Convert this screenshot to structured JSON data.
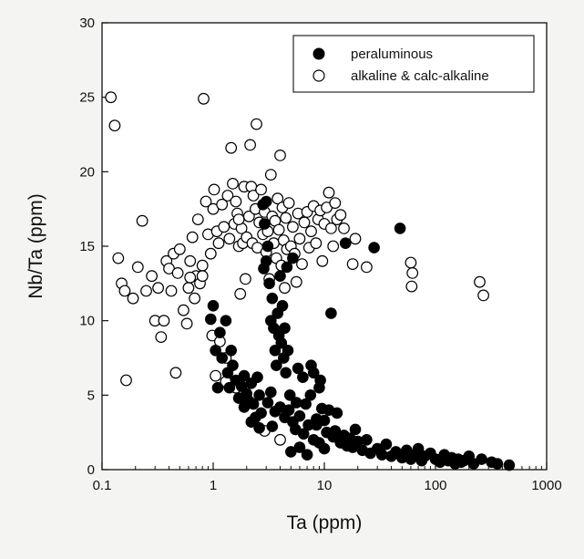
{
  "chart_data": {
    "type": "scatter",
    "title": "",
    "xlabel": "Ta (ppm)",
    "ylabel": "Nb/Ta (ppm)",
    "x_scale": "log",
    "xlim": [
      0.1,
      1000
    ],
    "ylim": [
      0,
      30
    ],
    "x_ticks": [
      0.1,
      1,
      10,
      100,
      1000
    ],
    "x_tick_labels": [
      "0.1",
      "1",
      "10",
      "100",
      "1000"
    ],
    "y_ticks": [
      0,
      5,
      10,
      15,
      20,
      25,
      30
    ],
    "y_tick_labels": [
      "0",
      "5",
      "10",
      "15",
      "20",
      "25",
      "30"
    ],
    "grid": false,
    "legend_position": "top-right",
    "series": [
      {
        "name": "peraluminous",
        "marker": "filled-circle",
        "color": "#000000",
        "points": [
          [
            0.95,
            10.1
          ],
          [
            1.0,
            11.0
          ],
          [
            1.05,
            8.0
          ],
          [
            1.1,
            5.5
          ],
          [
            1.2,
            7.5
          ],
          [
            1.3,
            10.0
          ],
          [
            1.35,
            6.5
          ],
          [
            1.4,
            5.5
          ],
          [
            1.5,
            7.0
          ],
          [
            1.6,
            6.0
          ],
          [
            1.7,
            4.8
          ],
          [
            1.8,
            5.6
          ],
          [
            1.9,
            6.3
          ],
          [
            2.0,
            5.1
          ],
          [
            2.1,
            4.6
          ],
          [
            2.2,
            5.8
          ],
          [
            2.3,
            4.4
          ],
          [
            2.5,
            6.2
          ],
          [
            2.6,
            5.0
          ],
          [
            2.7,
            3.8
          ],
          [
            2.8,
            17.8
          ],
          [
            2.9,
            16.5
          ],
          [
            2.85,
            13.5
          ],
          [
            3.0,
            18.0
          ],
          [
            3.1,
            15.0
          ],
          [
            3.2,
            12.5
          ],
          [
            3.0,
            14.0
          ],
          [
            3.3,
            10.0
          ],
          [
            3.4,
            11.5
          ],
          [
            3.5,
            9.5
          ],
          [
            3.6,
            8.0
          ],
          [
            3.7,
            7.0
          ],
          [
            3.8,
            10.5
          ],
          [
            3.9,
            9.0
          ],
          [
            4.0,
            13.0
          ],
          [
            4.1,
            8.5
          ],
          [
            4.2,
            11.0
          ],
          [
            4.3,
            7.5
          ],
          [
            4.4,
            9.5
          ],
          [
            4.5,
            6.5
          ],
          [
            4.7,
            8.0
          ],
          [
            4.9,
            5.0
          ],
          [
            3.1,
            4.5
          ],
          [
            3.3,
            5.2
          ],
          [
            3.6,
            3.9
          ],
          [
            4.0,
            4.2
          ],
          [
            4.4,
            3.5
          ],
          [
            4.8,
            4.0
          ],
          [
            5.2,
            3.2
          ],
          [
            5.6,
            4.5
          ],
          [
            6.0,
            3.6
          ],
          [
            6.4,
            6.2
          ],
          [
            6.8,
            4.4
          ],
          [
            7.2,
            3.0
          ],
          [
            7.6,
            7.0
          ],
          [
            8.0,
            6.5
          ],
          [
            8.5,
            3.4
          ],
          [
            9.0,
            5.5
          ],
          [
            9.5,
            4.1
          ],
          [
            10.0,
            3.3
          ],
          [
            10.5,
            2.5
          ],
          [
            11.0,
            4.0
          ],
          [
            11.5,
            10.5
          ],
          [
            12.0,
            2.2
          ],
          [
            12.5,
            2.6
          ],
          [
            13.0,
            3.8
          ],
          [
            14.0,
            1.8
          ],
          [
            15.0,
            2.3
          ],
          [
            15.5,
            15.2
          ],
          [
            16.0,
            1.6
          ],
          [
            17.0,
            2.1
          ],
          [
            18.0,
            1.5
          ],
          [
            19.0,
            2.7
          ],
          [
            20.0,
            1.9
          ],
          [
            22.0,
            1.3
          ],
          [
            24.0,
            2.0
          ],
          [
            26.0,
            1.1
          ],
          [
            28.0,
            14.9
          ],
          [
            30.0,
            1.4
          ],
          [
            33.0,
            1.0
          ],
          [
            36.0,
            1.7
          ],
          [
            40.0,
            0.9
          ],
          [
            44.0,
            1.2
          ],
          [
            48.0,
            16.2
          ],
          [
            50.0,
            0.8
          ],
          [
            55.0,
            1.3
          ],
          [
            60.0,
            0.7
          ],
          [
            65.0,
            1.0
          ],
          [
            70.0,
            1.4
          ],
          [
            75.0,
            0.6
          ],
          [
            80.0,
            0.9
          ],
          [
            90.0,
            1.1
          ],
          [
            100.0,
            0.7
          ],
          [
            110.0,
            0.5
          ],
          [
            120.0,
            1.0
          ],
          [
            130.0,
            0.6
          ],
          [
            140.0,
            0.8
          ],
          [
            150.0,
            0.4
          ],
          [
            160.0,
            0.7
          ],
          [
            170.0,
            0.5
          ],
          [
            180.0,
            0.6
          ],
          [
            200.0,
            0.9
          ],
          [
            220.0,
            0.4
          ],
          [
            260.0,
            0.7
          ],
          [
            320.0,
            0.5
          ],
          [
            360.0,
            0.4
          ],
          [
            460.0,
            0.3
          ],
          [
            5.0,
            1.2
          ],
          [
            6.0,
            1.5
          ],
          [
            7.0,
            1.0
          ],
          [
            8.0,
            2.0
          ],
          [
            9.0,
            1.8
          ],
          [
            10.0,
            1.4
          ],
          [
            5.5,
            2.7
          ],
          [
            6.5,
            2.4
          ],
          [
            7.5,
            5.0
          ],
          [
            8.5,
            3.0
          ],
          [
            2.4,
            3.5
          ],
          [
            2.6,
            2.8
          ],
          [
            3.4,
            2.9
          ],
          [
            2.2,
            3.2
          ],
          [
            1.9,
            4.2
          ],
          [
            5.8,
            6.8
          ],
          [
            9.2,
            6.0
          ],
          [
            4.6,
            13.6
          ],
          [
            5.2,
            14.2
          ],
          [
            1.15,
            9.2
          ],
          [
            1.45,
            8.0
          ]
        ]
      },
      {
        "name": "alkaline & calc-alkaline",
        "marker": "open-circle",
        "color": "#ffffff",
        "points": [
          [
            0.12,
            25.0
          ],
          [
            0.13,
            23.1
          ],
          [
            0.14,
            14.2
          ],
          [
            0.15,
            12.5
          ],
          [
            0.16,
            12.0
          ],
          [
            0.165,
            6.0
          ],
          [
            0.19,
            11.5
          ],
          [
            0.21,
            13.6
          ],
          [
            0.23,
            16.7
          ],
          [
            0.25,
            12.0
          ],
          [
            0.28,
            13.0
          ],
          [
            0.3,
            10.0
          ],
          [
            0.32,
            12.2
          ],
          [
            0.34,
            8.9
          ],
          [
            0.36,
            10.0
          ],
          [
            0.38,
            14.0
          ],
          [
            0.4,
            13.5
          ],
          [
            0.42,
            12.0
          ],
          [
            0.44,
            14.5
          ],
          [
            0.46,
            6.5
          ],
          [
            0.48,
            13.2
          ],
          [
            0.5,
            14.8
          ],
          [
            0.54,
            10.7
          ],
          [
            0.58,
            9.8
          ],
          [
            0.6,
            12.2
          ],
          [
            0.62,
            14.0
          ],
          [
            0.65,
            15.6
          ],
          [
            0.68,
            11.5
          ],
          [
            0.7,
            13.0
          ],
          [
            0.73,
            16.8
          ],
          [
            0.76,
            12.5
          ],
          [
            0.8,
            13.7
          ],
          [
            0.82,
            24.9
          ],
          [
            0.86,
            18.0
          ],
          [
            0.9,
            15.8
          ],
          [
            0.95,
            14.5
          ],
          [
            0.98,
            9.0
          ],
          [
            1.0,
            17.5
          ],
          [
            1.02,
            18.8
          ],
          [
            1.05,
            6.3
          ],
          [
            1.08,
            16.0
          ],
          [
            1.12,
            15.2
          ],
          [
            1.15,
            8.6
          ],
          [
            1.2,
            17.8
          ],
          [
            1.25,
            16.3
          ],
          [
            1.3,
            7.5
          ],
          [
            1.35,
            18.4
          ],
          [
            1.4,
            15.5
          ],
          [
            1.45,
            21.6
          ],
          [
            1.5,
            19.2
          ],
          [
            1.55,
            16.5
          ],
          [
            1.6,
            18.0
          ],
          [
            1.65,
            17.2
          ],
          [
            1.7,
            15.0
          ],
          [
            1.75,
            11.8
          ],
          [
            1.8,
            16.2
          ],
          [
            1.85,
            15.2
          ],
          [
            1.9,
            19.0
          ],
          [
            1.95,
            12.8
          ],
          [
            2.0,
            15.6
          ],
          [
            2.1,
            17.0
          ],
          [
            2.15,
            21.8
          ],
          [
            2.2,
            19.0
          ],
          [
            2.25,
            15.2
          ],
          [
            2.3,
            18.4
          ],
          [
            2.4,
            17.5
          ],
          [
            2.45,
            23.2
          ],
          [
            2.5,
            14.9
          ],
          [
            2.6,
            16.6
          ],
          [
            2.7,
            18.8
          ],
          [
            2.8,
            15.8
          ],
          [
            2.9,
            17.3
          ],
          [
            3.0,
            14.6
          ],
          [
            3.1,
            16.0
          ],
          [
            3.2,
            12.8
          ],
          [
            3.3,
            19.8
          ],
          [
            3.4,
            17.0
          ],
          [
            3.5,
            15.2
          ],
          [
            3.6,
            16.7
          ],
          [
            3.7,
            14.2
          ],
          [
            3.8,
            18.2
          ],
          [
            3.9,
            16.1
          ],
          [
            4.0,
            21.1
          ],
          [
            4.1,
            13.7
          ],
          [
            4.2,
            17.6
          ],
          [
            4.3,
            15.4
          ],
          [
            4.4,
            12.2
          ],
          [
            4.5,
            16.9
          ],
          [
            4.6,
            14.8
          ],
          [
            4.8,
            17.9
          ],
          [
            5.0,
            15.0
          ],
          [
            5.2,
            16.3
          ],
          [
            5.4,
            14.5
          ],
          [
            5.6,
            12.6
          ],
          [
            5.8,
            17.2
          ],
          [
            6.0,
            15.5
          ],
          [
            6.3,
            13.8
          ],
          [
            6.6,
            16.6
          ],
          [
            7.0,
            17.3
          ],
          [
            7.3,
            14.9
          ],
          [
            7.6,
            16.0
          ],
          [
            8.0,
            17.7
          ],
          [
            8.4,
            15.2
          ],
          [
            8.8,
            16.8
          ],
          [
            9.2,
            17.4
          ],
          [
            9.6,
            14.0
          ],
          [
            10.0,
            16.5
          ],
          [
            10.5,
            17.6
          ],
          [
            11.0,
            18.6
          ],
          [
            11.5,
            16.2
          ],
          [
            12.0,
            15.0
          ],
          [
            12.5,
            17.9
          ],
          [
            13.0,
            16.8
          ],
          [
            14.0,
            17.1
          ],
          [
            15.0,
            16.2
          ],
          [
            18.0,
            13.8
          ],
          [
            19.0,
            15.5
          ],
          [
            24.0,
            13.6
          ],
          [
            60.0,
            13.9
          ],
          [
            62.0,
            13.2
          ],
          [
            61.0,
            12.3
          ],
          [
            250.0,
            12.6
          ],
          [
            270.0,
            11.7
          ],
          [
            2.9,
            2.6
          ],
          [
            4.0,
            2.0
          ],
          [
            1.3,
            5.9
          ],
          [
            1.6,
            5.5
          ],
          [
            0.8,
            13.0
          ],
          [
            0.62,
            12.9
          ],
          [
            1.7,
            16.8
          ]
        ]
      }
    ]
  }
}
